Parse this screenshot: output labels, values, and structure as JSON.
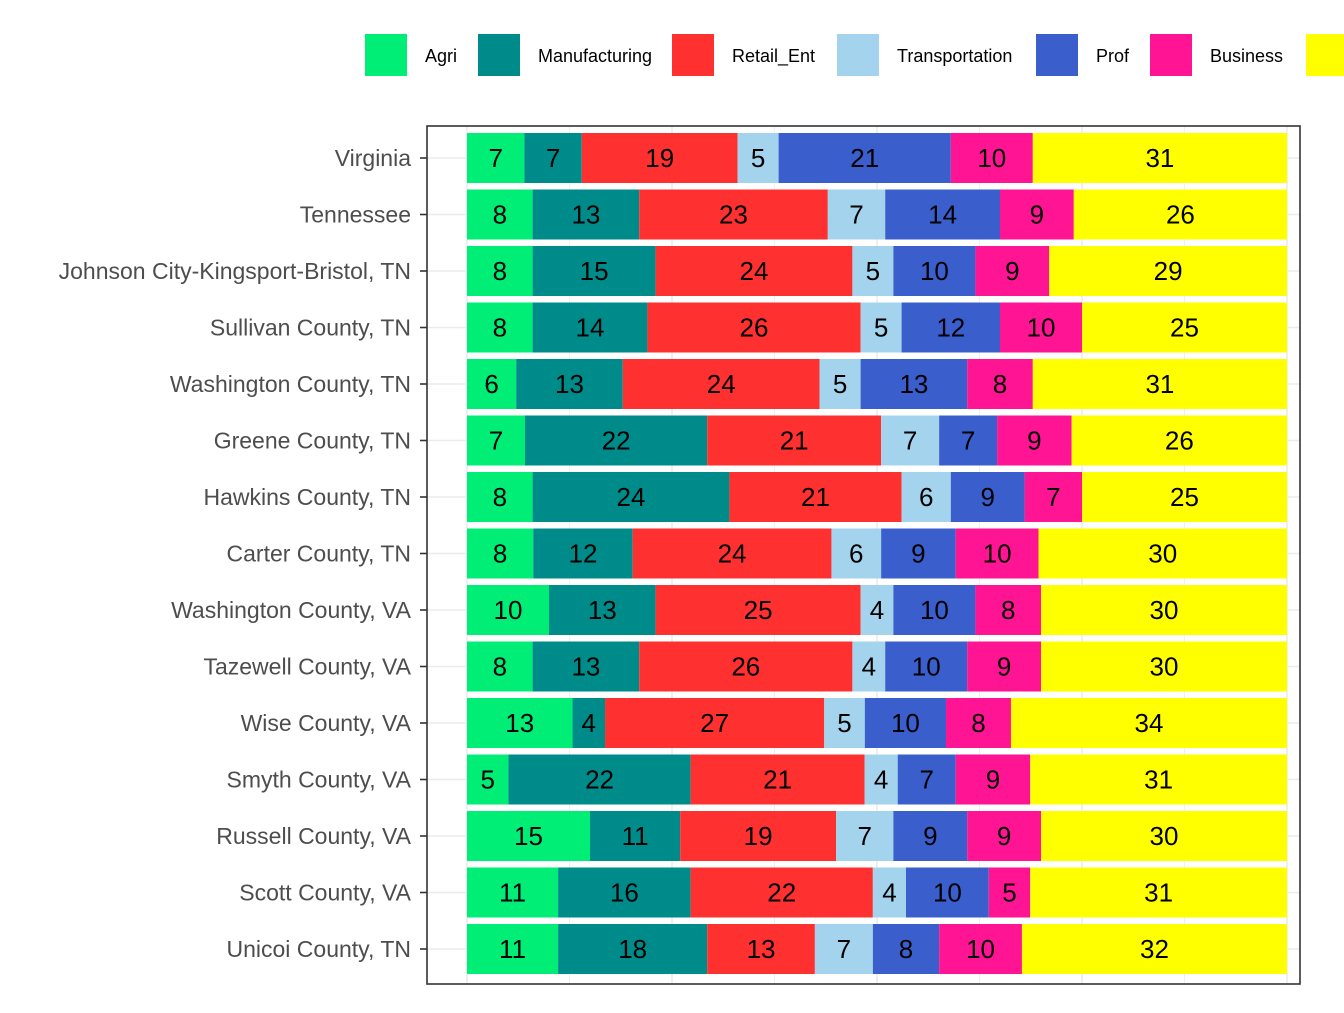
{
  "chart_data": {
    "type": "bar",
    "orientation": "horizontal",
    "stacked": true,
    "title": "",
    "xlabel": "",
    "ylabel": "",
    "xlim": [
      0,
      100
    ],
    "grid": true,
    "legend_position": "top",
    "categories": [
      "Virginia",
      "Tennessee",
      "Johnson City-Kingsport-Bristol, TN",
      "Sullivan County, TN",
      "Washington County, TN",
      "Greene County, TN",
      "Hawkins County, TN",
      "Carter County, TN",
      "Washington County, VA",
      "Tazewell County, VA",
      "Wise County, VA",
      "Smyth County, VA",
      "Russell County, VA",
      "Scott County, VA",
      "Unicoi County, TN"
    ],
    "series": [
      {
        "name": "Agri",
        "color": "#00EE76",
        "values": [
          7,
          8,
          8,
          8,
          6,
          7,
          8,
          8,
          10,
          8,
          13,
          5,
          15,
          11,
          11
        ]
      },
      {
        "name": "Manufacturing",
        "color": "#008B8B",
        "values": [
          7,
          13,
          15,
          14,
          13,
          22,
          24,
          12,
          13,
          13,
          4,
          22,
          11,
          16,
          18
        ]
      },
      {
        "name": "Retail_Ent",
        "color": "#FF3030",
        "values": [
          19,
          23,
          24,
          26,
          24,
          21,
          21,
          24,
          25,
          26,
          27,
          21,
          19,
          22,
          13
        ]
      },
      {
        "name": "Transportation",
        "color": "#A4D3EE",
        "values": [
          5,
          7,
          5,
          5,
          5,
          7,
          6,
          6,
          4,
          4,
          5,
          4,
          7,
          4,
          7
        ]
      },
      {
        "name": "Prof",
        "color": "#3A5FCD",
        "values": [
          21,
          14,
          10,
          12,
          13,
          7,
          9,
          9,
          10,
          10,
          10,
          7,
          9,
          10,
          8
        ]
      },
      {
        "name": "Business",
        "color": "#FF1493",
        "values": [
          10,
          9,
          9,
          10,
          8,
          9,
          7,
          10,
          8,
          9,
          8,
          9,
          9,
          5,
          10
        ]
      },
      {
        "name": "",
        "color": "#FFFF00",
        "values": [
          31,
          26,
          29,
          25,
          31,
          26,
          25,
          30,
          30,
          30,
          34,
          31,
          30,
          31,
          32
        ]
      }
    ]
  }
}
